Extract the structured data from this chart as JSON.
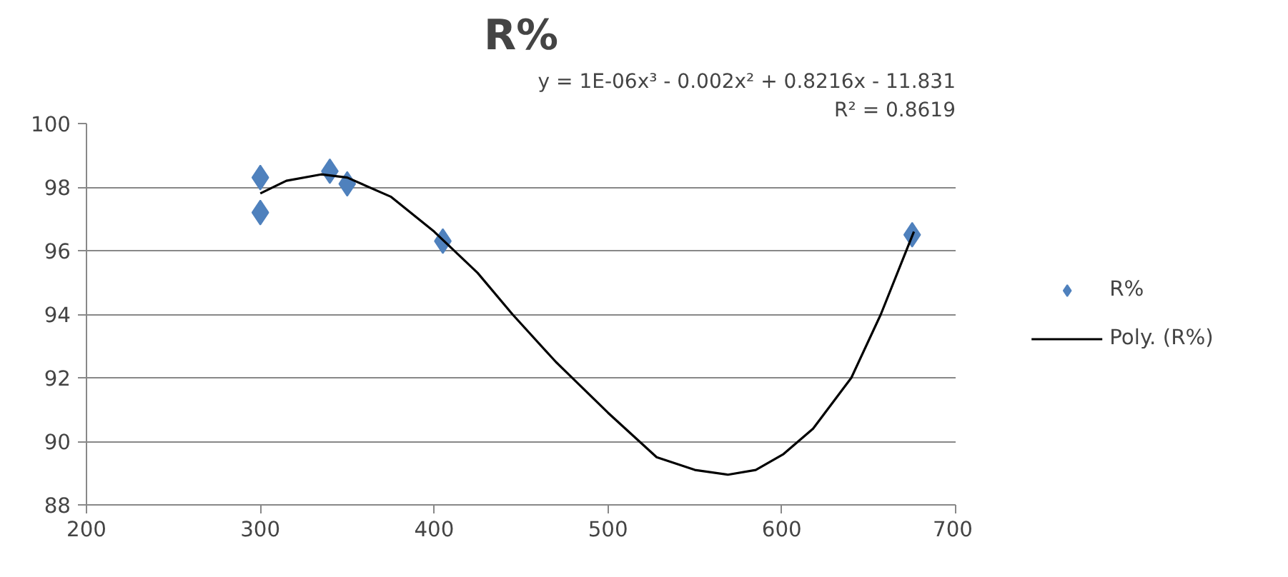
{
  "chart_data": {
    "type": "scatter",
    "title": "R%",
    "xlim": [
      200,
      700
    ],
    "xticks": [
      200,
      300,
      400,
      500,
      600,
      700
    ],
    "ylim": [
      88,
      100
    ],
    "yticks": [
      88,
      90,
      92,
      94,
      96,
      98,
      100
    ],
    "grid": "y",
    "legend": "right",
    "marker": "diamond",
    "annotations": [
      "y = 1E-06x³ - 0.002x² + 0.8216x - 11.831",
      "R² = 0.8619"
    ],
    "series": [
      {
        "name": "R%",
        "color": "#4f81bd",
        "x": [
          300,
          300,
          340,
          350,
          405,
          675
        ],
        "values": [
          98.3,
          97.2,
          98.5,
          98.1,
          96.3,
          96.5
        ]
      },
      {
        "name": "Poly. (R%)",
        "type": "line",
        "color": "#000000",
        "marker": "none",
        "line_style": "solid",
        "x": [
          300,
          315,
          335,
          350,
          375,
          400,
          425,
          445,
          470,
          500,
          528,
          550,
          569,
          585,
          601,
          618,
          640,
          657,
          676
        ],
        "values": [
          97.8,
          98.2,
          98.4,
          98.3,
          97.7,
          96.6,
          95.3,
          94.0,
          92.5,
          90.9,
          89.5,
          89.1,
          88.95,
          89.1,
          89.6,
          90.4,
          92.0,
          94.0,
          96.6
        ]
      }
    ]
  }
}
